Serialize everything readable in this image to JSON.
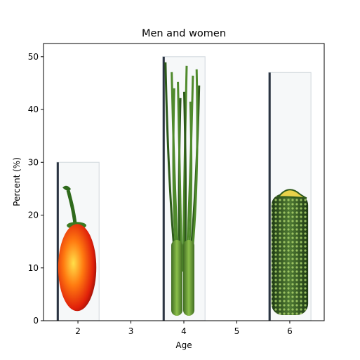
{
  "chart_data": {
    "type": "bar",
    "title": "Men and women",
    "xlabel": "Age",
    "ylabel": "Percent (%)",
    "x": [
      2,
      4,
      6
    ],
    "values": [
      30,
      50,
      47
    ],
    "xlim": [
      1.35,
      6.65
    ],
    "ylim": [
      0,
      52.5
    ],
    "xticks": [
      2,
      3,
      4,
      5,
      6
    ],
    "yticks": [
      0,
      10,
      20,
      30,
      40,
      50
    ],
    "bar_width": 0.8,
    "bar_fill_images": [
      "red bell pepper",
      "green onion stalks",
      "textured cucumber"
    ],
    "grid": false,
    "legend": "none"
  }
}
